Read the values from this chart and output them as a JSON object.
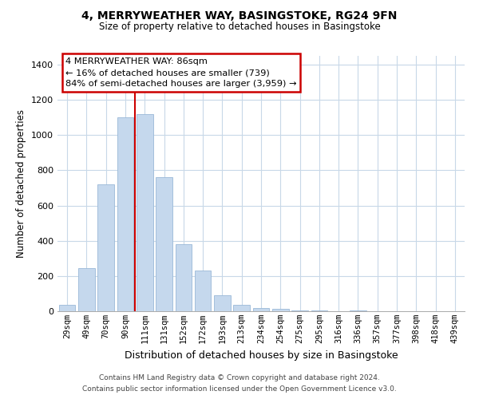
{
  "title": "4, MERRYWEATHER WAY, BASINGSTOKE, RG24 9FN",
  "subtitle": "Size of property relative to detached houses in Basingstoke",
  "xlabel": "Distribution of detached houses by size in Basingstoke",
  "ylabel": "Number of detached properties",
  "bar_labels": [
    "29sqm",
    "49sqm",
    "70sqm",
    "90sqm",
    "111sqm",
    "131sqm",
    "152sqm",
    "172sqm",
    "193sqm",
    "213sqm",
    "234sqm",
    "254sqm",
    "275sqm",
    "295sqm",
    "316sqm",
    "336sqm",
    "357sqm",
    "377sqm",
    "398sqm",
    "418sqm",
    "439sqm"
  ],
  "bar_values": [
    35,
    245,
    720,
    1100,
    1120,
    760,
    380,
    230,
    90,
    35,
    20,
    15,
    5,
    5,
    0,
    5,
    0,
    0,
    0,
    0,
    0
  ],
  "bar_color": "#c5d8ed",
  "bar_edge_color": "#9ab8d8",
  "vline_x": 3.5,
  "vline_color": "#cc0000",
  "ylim": [
    0,
    1450
  ],
  "yticks": [
    0,
    200,
    400,
    600,
    800,
    1000,
    1200,
    1400
  ],
  "annotation_line1": "4 MERRYWEATHER WAY: 86sqm",
  "annotation_line2": "← 16% of detached houses are smaller (739)",
  "annotation_line3": "84% of semi-detached houses are larger (3,959) →",
  "annotation_box_color": "#ffffff",
  "annotation_box_edge": "#cc0000",
  "footer_line1": "Contains HM Land Registry data © Crown copyright and database right 2024.",
  "footer_line2": "Contains public sector information licensed under the Open Government Licence v3.0.",
  "background_color": "#ffffff",
  "grid_color": "#c8d8e8"
}
